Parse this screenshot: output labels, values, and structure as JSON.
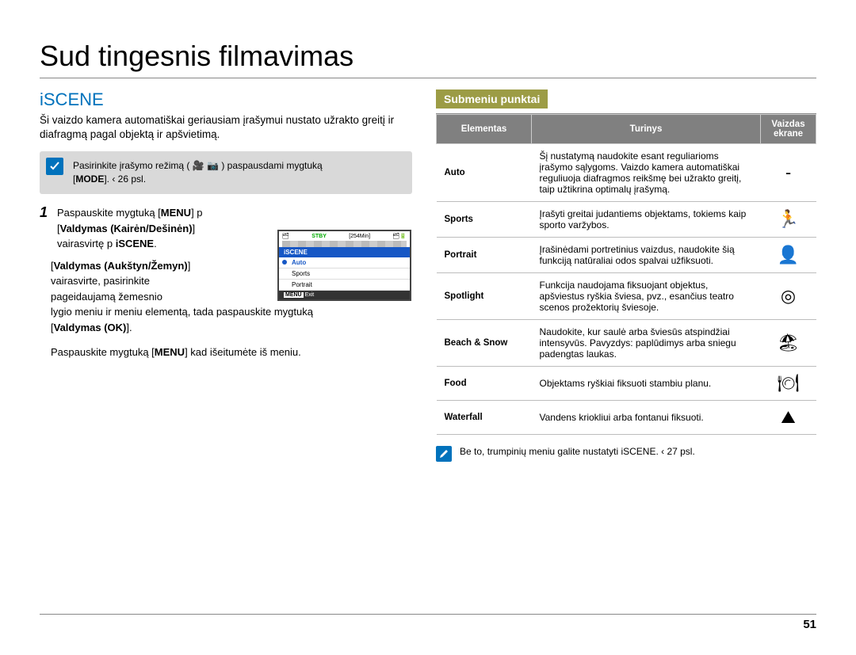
{
  "title": "Sud tingesnis filmavimas",
  "iscene_heading": "iSCENE",
  "intro": "Ši vaizdo kamera automatiškai geriausiam įrašymui nustato užrakto greitį ir diafragmą pagal objektą ir apšvietimą.",
  "note": {
    "prefix": "Pasirinkite įrašymo režimą (",
    "suffix": ") paspausdami mygtuką",
    "line2_pre": "[",
    "line2_bold": "MODE",
    "line2_post": "].  ‹ 26 psl."
  },
  "step1": {
    "num": "1",
    "t1a": "Paspauskite mygtuką [",
    "t1b": "MENU",
    "t1c": "]  p",
    "t2a": "[",
    "t2b": "Valdymas (Kairėn/Dešinėn)",
    "t2c": "]",
    "t3a": "vairasvirtę  p ",
    "t3b": "iSCENE",
    "t3c": "."
  },
  "step2": {
    "t1a": "[",
    "t1b": "Valdymas (Aukštyn/Žemyn)",
    "t1c": "]",
    "t2": "vairasvirte, pasirinkite",
    "t3": "pageidaujamą žemesnio",
    "t4": "lygio meniu ir meniu elementą, tada paspauskite mygtuką",
    "t5a": "[",
    "t5b": "Valdymas (OK)",
    "t5c": "]."
  },
  "step3": {
    "t1a": "Paspauskite mygtuką [",
    "t1b": "MENU",
    "t1c": "] kad išeitumėte iš meniu."
  },
  "lcd": {
    "stby": "STBY",
    "time": "[254Min]",
    "header": "iSCENE",
    "row1": "Auto",
    "row2": "Sports",
    "row3": "Portrait",
    "menu_label": "MENU",
    "exit": "Exit"
  },
  "submenu_heading": "Submeniu punktai",
  "table": {
    "h1": "Elementas",
    "h2": "Turinys",
    "h3a": "Vaizdas",
    "h3b": "ekrane",
    "rows": [
      {
        "name": "Auto",
        "desc": "Šį nustatymą naudokite esant reguliarioms įrašymo sąlygoms. Vaizdo kamera automatiškai reguliuoja diafragmos reikšmę bei užrakto greitį, taip užtikrina optimalų įrašymą.",
        "icon": "-"
      },
      {
        "name": "Sports",
        "desc": "Įrašyti greitai judantiems objektams, tokiems kaip sporto varžybos.",
        "icon": "🏃"
      },
      {
        "name": "Portrait",
        "desc": "Įrašinėdami portretinius vaizdus, naudokite šią funkciją natūraliai odos spalvai užfiksuoti.",
        "icon": "👤"
      },
      {
        "name": "Spotlight",
        "desc": "Funkcija naudojama fiksuojant objektus, apšviestus ryškia šviesa, pvz., esančius teatro scenos prožektorių šviesoje.",
        "icon": "◎"
      },
      {
        "name": "Beach & Snow",
        "desc": "Naudokite, kur saulė arba šviesūs atspindžiai intensyvūs. Pavyzdys: paplūdimys arba sniegu padengtas laukas.",
        "icon": "🏖"
      },
      {
        "name": "Food",
        "desc": "Objektams ryškiai fiksuoti stambiu planu.",
        "icon": "🍽"
      },
      {
        "name": "Waterfall",
        "desc": "Vandens kriokliui arba fontanui fiksuoti.",
        "icon": "⛰"
      }
    ]
  },
  "footer_note": "Be to, trumpinių meniu galite nustatyti iSCENE.  ‹ 27 psl.",
  "page_number": "51"
}
